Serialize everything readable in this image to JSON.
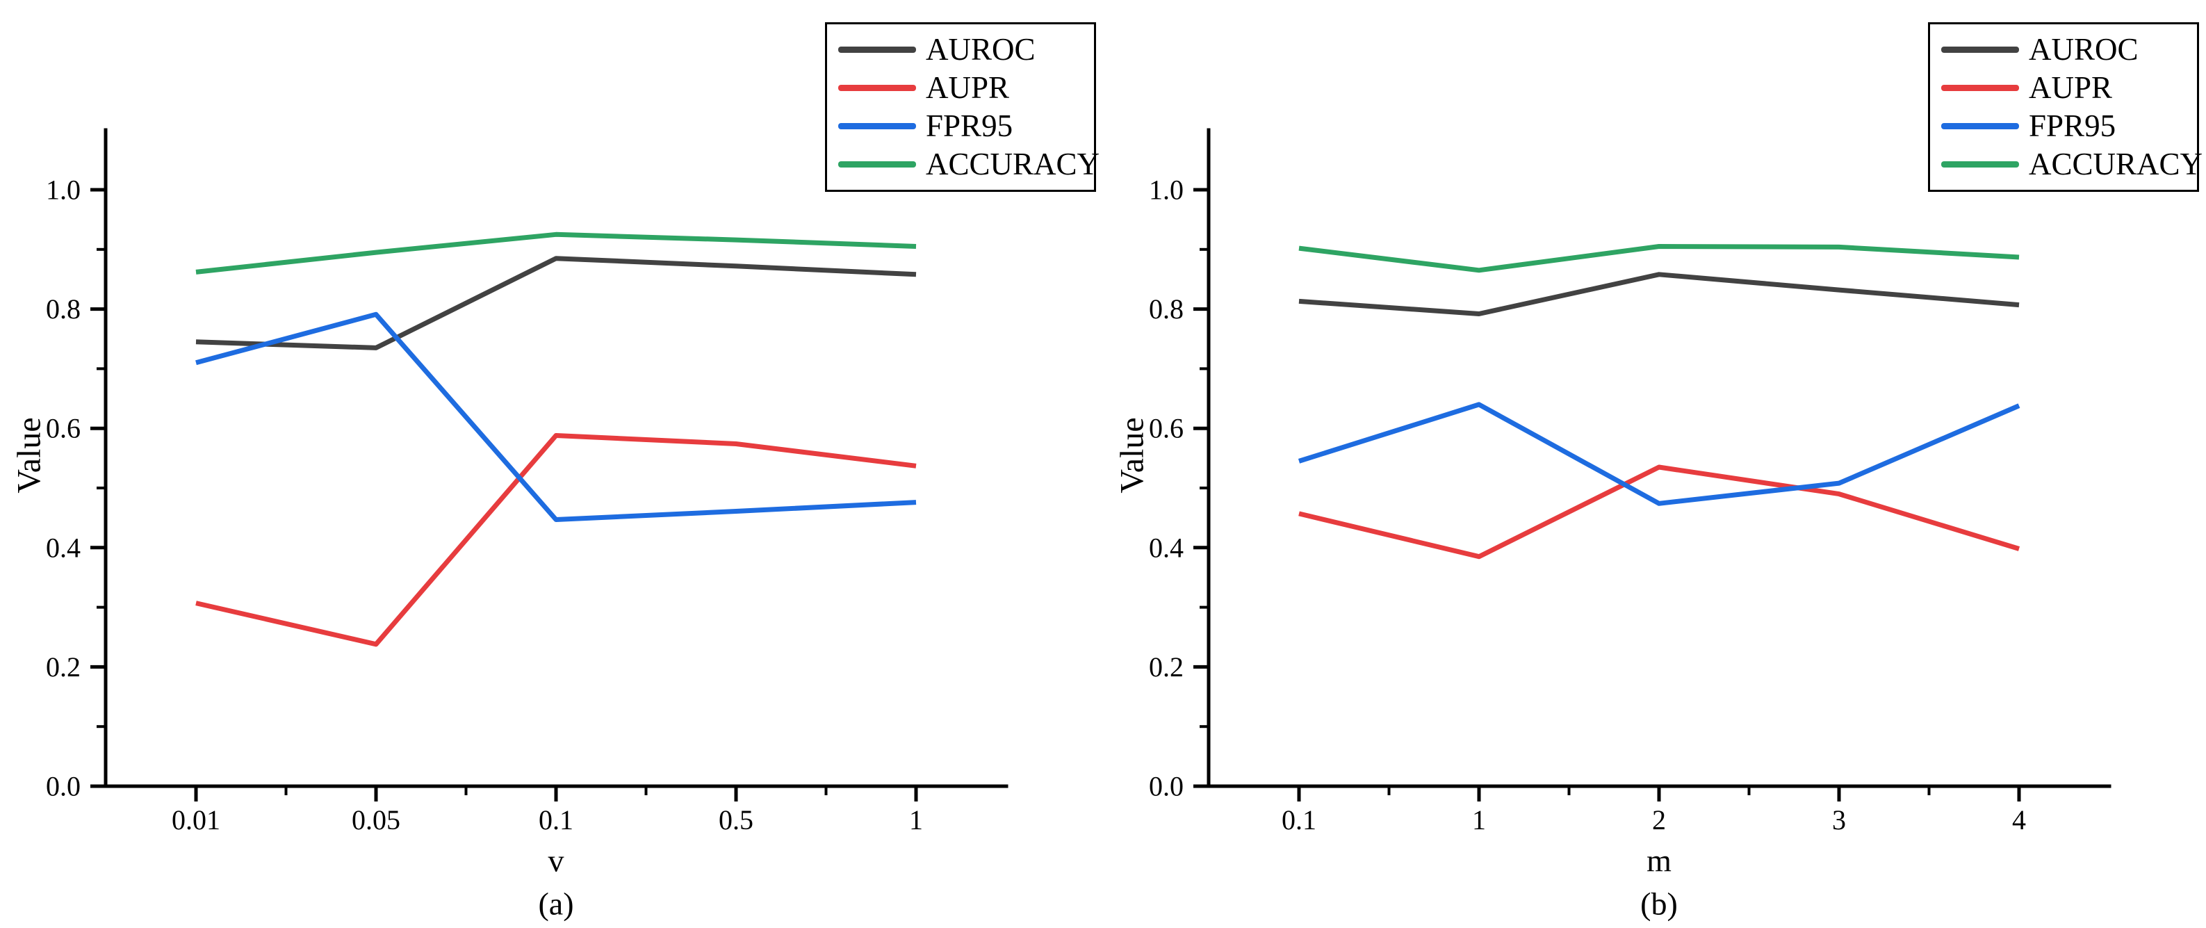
{
  "figure": {
    "background": "#ffffff",
    "axis_color": "#000000",
    "legend_entries": [
      "AUROC",
      "AUPR",
      "FPR95",
      "ACCURACY"
    ],
    "series_colors": {
      "AUROC": "#424242",
      "AUPR": "#e73c3e",
      "FPR95": "#1e6ce0",
      "ACCURACY": "#2ea463"
    }
  },
  "chart_data": [
    {
      "type": "line",
      "caption": "(a)",
      "xlabel": "v",
      "ylabel": "Value",
      "categories": [
        "0.01",
        "0.05",
        "0.1",
        "0.5",
        "1"
      ],
      "ylim": [
        0.0,
        1.1
      ],
      "yticks": [
        0.0,
        0.2,
        0.4,
        0.6,
        0.8,
        1.0
      ],
      "grid": false,
      "legend_position": "top-right",
      "series": [
        {
          "name": "AUROC",
          "color": "#424242",
          "values": [
            0.745,
            0.735,
            0.885,
            0.872,
            0.858
          ]
        },
        {
          "name": "AUPR",
          "color": "#e73c3e",
          "values": [
            0.307,
            0.238,
            0.588,
            0.574,
            0.537
          ]
        },
        {
          "name": "FPR95",
          "color": "#1e6ce0",
          "values": [
            0.71,
            0.791,
            0.447,
            0.461,
            0.476
          ]
        },
        {
          "name": "ACCURACY",
          "color": "#2ea463",
          "values": [
            0.862,
            0.895,
            0.925,
            0.916,
            0.905
          ]
        }
      ]
    },
    {
      "type": "line",
      "caption": "(b)",
      "xlabel": "m",
      "ylabel": "Value",
      "categories": [
        "0.1",
        "1",
        "2",
        "3",
        "4"
      ],
      "ylim": [
        0.0,
        1.1
      ],
      "yticks": [
        0.0,
        0.2,
        0.4,
        0.6,
        0.8,
        1.0
      ],
      "grid": false,
      "legend_position": "top-right",
      "series": [
        {
          "name": "AUROC",
          "color": "#424242",
          "values": [
            0.813,
            0.792,
            0.858,
            0.832,
            0.807
          ]
        },
        {
          "name": "AUPR",
          "color": "#e73c3e",
          "values": [
            0.457,
            0.385,
            0.535,
            0.49,
            0.398
          ]
        },
        {
          "name": "FPR95",
          "color": "#1e6ce0",
          "values": [
            0.545,
            0.64,
            0.474,
            0.508,
            0.638
          ]
        },
        {
          "name": "ACCURACY",
          "color": "#2ea463",
          "values": [
            0.902,
            0.865,
            0.905,
            0.904,
            0.887
          ]
        }
      ]
    }
  ]
}
